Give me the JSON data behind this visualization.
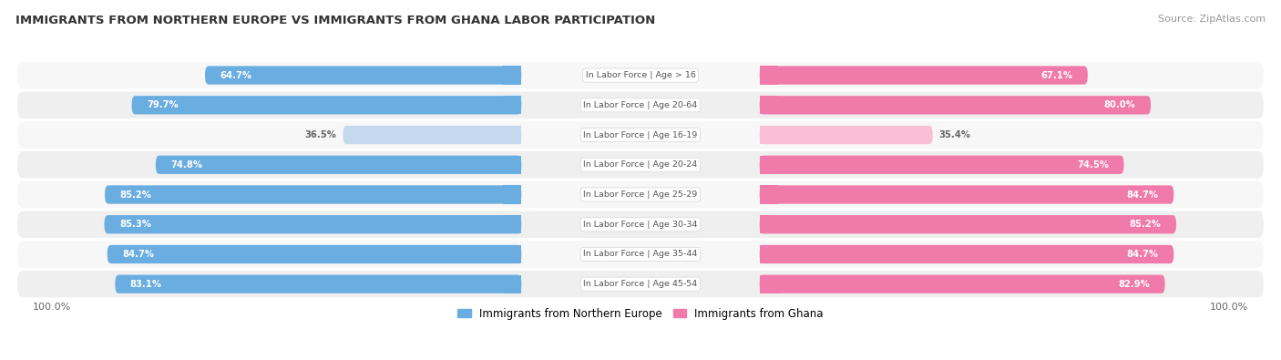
{
  "title": "IMMIGRANTS FROM NORTHERN EUROPE VS IMMIGRANTS FROM GHANA LABOR PARTICIPATION",
  "source": "Source: ZipAtlas.com",
  "categories": [
    "In Labor Force | Age > 16",
    "In Labor Force | Age 20-64",
    "In Labor Force | Age 16-19",
    "In Labor Force | Age 20-24",
    "In Labor Force | Age 25-29",
    "In Labor Force | Age 30-34",
    "In Labor Force | Age 35-44",
    "In Labor Force | Age 45-54"
  ],
  "northern_europe": [
    64.7,
    79.7,
    36.5,
    74.8,
    85.2,
    85.3,
    84.7,
    83.1
  ],
  "ghana": [
    67.1,
    80.0,
    35.4,
    74.5,
    84.7,
    85.2,
    84.7,
    82.9
  ],
  "northern_europe_color": "#6aade0",
  "northern_europe_light_color": "#c5d9ee",
  "ghana_color": "#f07aaa",
  "ghana_light_color": "#f9c0d5",
  "row_bg_color_odd": "#f7f7f7",
  "row_bg_color_even": "#efefef",
  "legend_ne": "Immigrants from Northern Europe",
  "legend_ghana": "Immigrants from Ghana",
  "max_value": 100.0,
  "footer_label": "100.0%"
}
